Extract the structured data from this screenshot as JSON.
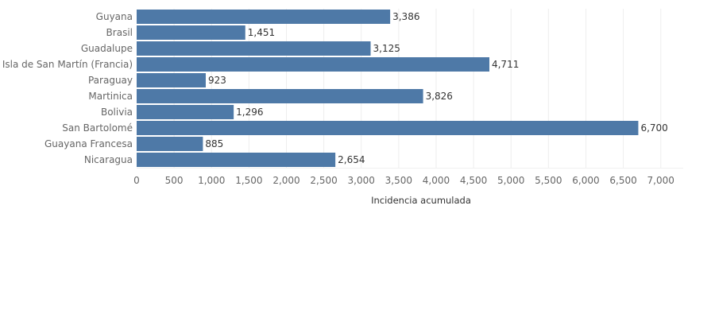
{
  "chart_data": {
    "type": "bar",
    "orientation": "horizontal",
    "categories": [
      "Guyana",
      "Brasil",
      "Guadalupe",
      "Isla de San Martín (Francia)",
      "Paraguay",
      "Martinica",
      "Bolivia",
      "San Bartolomé",
      "Guayana Francesa",
      "Nicaragua"
    ],
    "values": [
      3386,
      1451,
      3125,
      4711,
      923,
      3826,
      1296,
      6700,
      885,
      2654
    ],
    "value_labels": [
      "3,386",
      "1,451",
      "3,125",
      "4,711",
      "923",
      "3,826",
      "1,296",
      "6,700",
      "885",
      "2,654"
    ],
    "xlabel": "Incidencia acumulada",
    "xlim": [
      0,
      7300
    ],
    "x_ticks": [
      0,
      500,
      1000,
      1500,
      2000,
      2500,
      3000,
      3500,
      4000,
      4500,
      5000,
      5500,
      6000,
      6500,
      7000
    ],
    "x_tick_labels": [
      "0",
      "500",
      "1,000",
      "1,500",
      "2,000",
      "2,500",
      "3,000",
      "3,500",
      "4,000",
      "4,500",
      "5,000",
      "5,500",
      "6,000",
      "6,500",
      "7,000"
    ],
    "grid": "vertical",
    "bar_color": "#4e79a7"
  }
}
